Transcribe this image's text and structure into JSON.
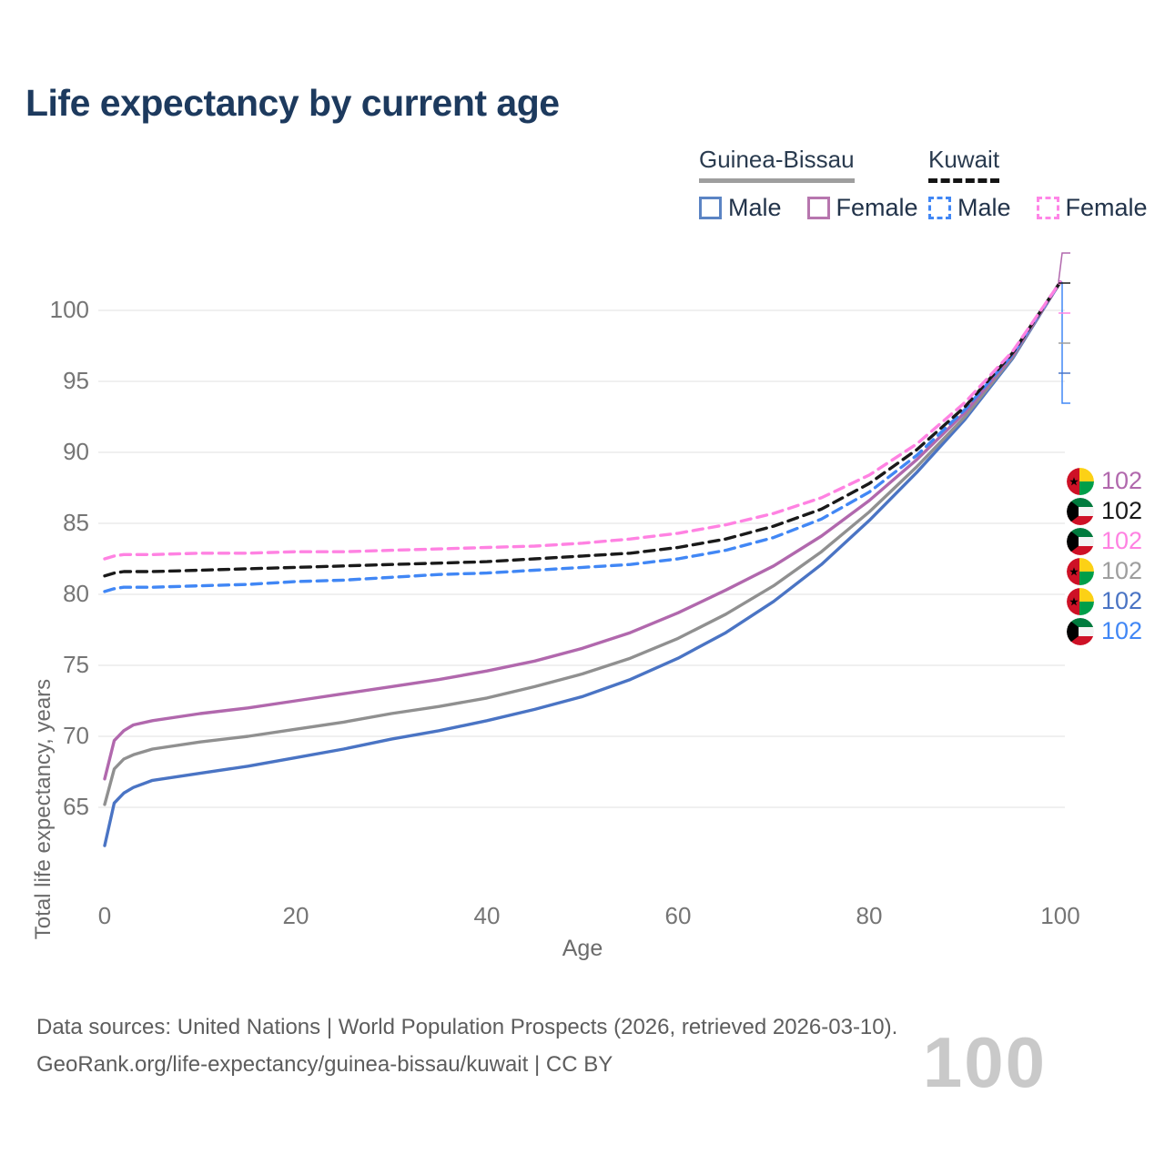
{
  "title": "Life expectancy by current age",
  "legend": {
    "groups": [
      {
        "name": "Guinea-Bissau",
        "line_style": "solid",
        "line_color": "#9e9e9e",
        "items": [
          {
            "label": "Male",
            "color": "#5b84c4",
            "style": "solid"
          },
          {
            "label": "Female",
            "color": "#b776ae",
            "style": "solid"
          }
        ]
      },
      {
        "name": "Kuwait",
        "line_style": "dashed",
        "line_color": "#141414",
        "items": [
          {
            "label": "Male",
            "color": "#4187f5",
            "style": "dashed"
          },
          {
            "label": "Female",
            "color": "#ff85e7",
            "style": "dashed"
          }
        ]
      }
    ]
  },
  "axes": {
    "x_label": "Age",
    "y_label": "Total life expectancy, years"
  },
  "watermark": "100",
  "chart_data": {
    "type": "line",
    "title": "Life expectancy by current age",
    "xlabel": "Age",
    "ylabel": "Total life expectancy, years",
    "xlim": [
      0,
      100
    ],
    "ylim": [
      61.5,
      103.5
    ],
    "xticks": [
      0,
      20,
      40,
      60,
      80,
      100
    ],
    "yticks": [
      65,
      70,
      75,
      80,
      85,
      90,
      95,
      100
    ],
    "grid": "horizontal",
    "legend_position": "top-right",
    "hover_age": 100,
    "x": [
      0,
      1,
      2,
      3,
      5,
      10,
      15,
      20,
      25,
      30,
      35,
      40,
      45,
      50,
      55,
      60,
      65,
      70,
      75,
      80,
      85,
      90,
      95,
      100
    ],
    "series": [
      {
        "name": "Guinea-Bissau Male",
        "country": "Guinea-Bissau",
        "sex": "Male",
        "style": "solid",
        "color": "#4a74c4",
        "end_value": 102,
        "values": [
          62.3,
          65.3,
          66.0,
          66.4,
          66.9,
          67.4,
          67.9,
          68.5,
          69.1,
          69.8,
          70.4,
          71.1,
          71.9,
          72.8,
          74.0,
          75.5,
          77.3,
          79.5,
          82.1,
          85.2,
          88.6,
          92.3,
          96.6,
          102
        ]
      },
      {
        "name": "Guinea-Bissau Average",
        "country": "Guinea-Bissau",
        "sex": "Both",
        "style": "solid",
        "color": "#909090",
        "end_value": 102,
        "values": [
          65.2,
          67.7,
          68.4,
          68.7,
          69.1,
          69.6,
          70.0,
          70.5,
          71.0,
          71.6,
          72.1,
          72.7,
          73.5,
          74.4,
          75.5,
          76.9,
          78.6,
          80.6,
          83.0,
          85.8,
          89.0,
          92.5,
          96.7,
          102
        ]
      },
      {
        "name": "Guinea-Bissau Female",
        "country": "Guinea-Bissau",
        "sex": "Female",
        "style": "solid",
        "color": "#b168ad",
        "end_value": 102,
        "values": [
          67.0,
          69.7,
          70.4,
          70.8,
          71.1,
          71.6,
          72.0,
          72.5,
          73.0,
          73.5,
          74.0,
          74.6,
          75.3,
          76.2,
          77.3,
          78.7,
          80.3,
          82.0,
          84.1,
          86.6,
          89.5,
          92.8,
          96.8,
          102
        ]
      },
      {
        "name": "Kuwait Male",
        "country": "Kuwait",
        "sex": "Male",
        "style": "dashed",
        "color": "#4187f5",
        "end_value": 102,
        "values": [
          80.2,
          80.4,
          80.5,
          80.5,
          80.5,
          80.6,
          80.7,
          80.9,
          81.0,
          81.2,
          81.4,
          81.5,
          81.7,
          81.9,
          82.1,
          82.5,
          83.1,
          84.0,
          85.3,
          87.2,
          89.8,
          93.0,
          96.9,
          102
        ]
      },
      {
        "name": "Kuwait Average",
        "country": "Kuwait",
        "sex": "Both",
        "style": "dashed",
        "color": "#1a1a1a",
        "end_value": 102,
        "values": [
          81.3,
          81.5,
          81.6,
          81.6,
          81.6,
          81.7,
          81.8,
          81.9,
          82.0,
          82.1,
          82.2,
          82.3,
          82.5,
          82.7,
          82.9,
          83.3,
          83.9,
          84.8,
          86.0,
          87.8,
          90.2,
          93.2,
          97.0,
          102
        ]
      },
      {
        "name": "Kuwait Female",
        "country": "Kuwait",
        "sex": "Female",
        "style": "dashed",
        "color": "#ff82e2",
        "end_value": 102,
        "values": [
          82.5,
          82.7,
          82.8,
          82.8,
          82.8,
          82.9,
          82.9,
          83.0,
          83.0,
          83.1,
          83.2,
          83.3,
          83.4,
          83.6,
          83.9,
          84.3,
          84.9,
          85.7,
          86.8,
          88.4,
          90.6,
          93.5,
          97.1,
          102
        ]
      }
    ]
  },
  "end_labels": [
    {
      "flag": "guinea-bissau",
      "value": "102",
      "color": "#b168ad",
      "series": "Guinea-Bissau Female"
    },
    {
      "flag": "kuwait",
      "value": "102",
      "color": "#1a1a1a",
      "series": "Kuwait Average"
    },
    {
      "flag": "kuwait",
      "value": "102",
      "color": "#ff82e2",
      "series": "Kuwait Female"
    },
    {
      "flag": "guinea-bissau",
      "value": "102",
      "color": "#9e9e9e",
      "series": "Guinea-Bissau Average"
    },
    {
      "flag": "guinea-bissau",
      "value": "102",
      "color": "#4a74c4",
      "series": "Guinea-Bissau Male"
    },
    {
      "flag": "kuwait",
      "value": "102",
      "color": "#4187f5",
      "series": "Kuwait Male"
    }
  ],
  "footer": {
    "line1": "Data sources: United Nations | World Population Prospects (2026, retrieved 2026-03-10).",
    "line2": "GeoRank.org/life-expectancy/guinea-bissau/kuwait | CC BY"
  }
}
